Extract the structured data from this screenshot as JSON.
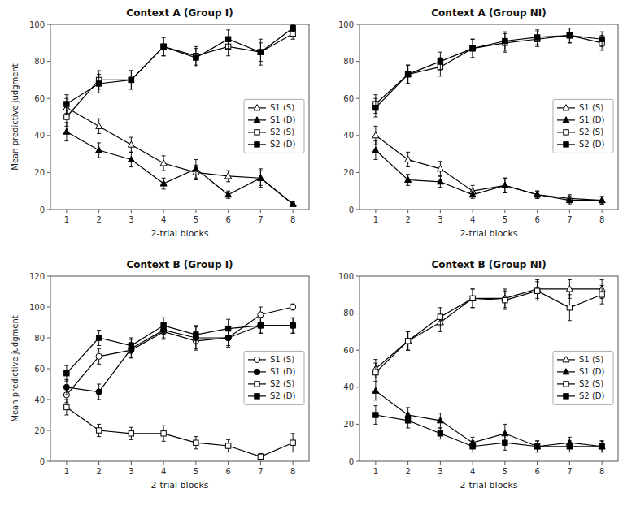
{
  "chart_data": [
    {
      "type": "line",
      "title": "Context A (Group I)",
      "x_label": "2-trial blocks",
      "y_label": "Mean predictive judgment",
      "x": [
        1,
        2,
        3,
        4,
        5,
        6,
        7,
        8
      ],
      "xlim": [
        0.5,
        8.5
      ],
      "xticks": [
        1,
        2,
        3,
        4,
        5,
        6,
        7,
        8
      ],
      "ylim": [
        0,
        100
      ],
      "yticks": [
        0,
        20,
        40,
        60,
        80,
        100
      ],
      "grid": false,
      "legend": "right",
      "series": [
        {
          "name": "S1 (S)",
          "color": "#000000",
          "marker": "triangle-open",
          "values": [
            55,
            45,
            35,
            25,
            20,
            18,
            17,
            3
          ],
          "err": [
            5,
            4,
            4,
            4,
            4,
            3,
            4,
            1
          ]
        },
        {
          "name": "S1 (D)",
          "color": "#000000",
          "marker": "triangle",
          "values": [
            42,
            32,
            27,
            14,
            22,
            8,
            17,
            3
          ],
          "err": [
            5,
            4,
            4,
            3,
            5,
            2,
            5,
            1
          ]
        },
        {
          "name": "S2 (S)",
          "color": "#000000",
          "marker": "square-open",
          "values": [
            50,
            70,
            70,
            88,
            83,
            88,
            85,
            95
          ],
          "err": [
            5,
            5,
            5,
            5,
            5,
            5,
            5,
            3
          ]
        },
        {
          "name": "S2 (D)",
          "color": "#000000",
          "marker": "square",
          "values": [
            57,
            68,
            70,
            88,
            82,
            92,
            85,
            98
          ],
          "err": [
            5,
            5,
            5,
            5,
            5,
            5,
            7,
            2
          ]
        }
      ]
    },
    {
      "type": "line",
      "title": "Context A (Group NI)",
      "x_label": "2-trial blocks",
      "x": [
        1,
        2,
        3,
        4,
        5,
        6,
        7,
        8
      ],
      "xlim": [
        0.5,
        8.5
      ],
      "xticks": [
        1,
        2,
        3,
        4,
        5,
        6,
        7,
        8
      ],
      "ylim": [
        0,
        100
      ],
      "yticks": [
        0,
        20,
        40,
        60,
        80,
        100
      ],
      "grid": false,
      "legend": "right",
      "series": [
        {
          "name": "S1 (S)",
          "color": "#000000",
          "marker": "triangle-open",
          "values": [
            40,
            27,
            22,
            10,
            13,
            8,
            6,
            5
          ],
          "err": [
            5,
            4,
            4,
            3,
            4,
            2,
            2,
            2
          ]
        },
        {
          "name": "S1 (D)",
          "color": "#000000",
          "marker": "triangle",
          "values": [
            32,
            16,
            15,
            8,
            13,
            8,
            5,
            5
          ],
          "err": [
            5,
            3,
            3,
            2,
            4,
            2,
            2,
            2
          ]
        },
        {
          "name": "S2 (S)",
          "color": "#000000",
          "marker": "square-open",
          "values": [
            57,
            73,
            77,
            87,
            90,
            92,
            94,
            90
          ],
          "err": [
            5,
            5,
            5,
            5,
            5,
            4,
            4,
            4
          ]
        },
        {
          "name": "S2 (D)",
          "color": "#000000",
          "marker": "square",
          "values": [
            55,
            73,
            80,
            87,
            91,
            93,
            94,
            92
          ],
          "err": [
            5,
            5,
            5,
            5,
            5,
            4,
            4,
            4
          ]
        }
      ]
    },
    {
      "type": "line",
      "title": "Context B (Group I)",
      "x_label": "2-trial blocks",
      "y_label": "Mean predictive judgment",
      "x": [
        1,
        2,
        3,
        4,
        5,
        6,
        7,
        8
      ],
      "xlim": [
        0.5,
        8.5
      ],
      "xticks": [
        1,
        2,
        3,
        4,
        5,
        6,
        7,
        8
      ],
      "ylim": [
        0,
        120
      ],
      "yticks": [
        0,
        20,
        40,
        60,
        80,
        100,
        120
      ],
      "grid": false,
      "legend": "right",
      "series": [
        {
          "name": "S1 (S)",
          "color": "#000000",
          "marker": "circle-open",
          "values": [
            43,
            68,
            72,
            84,
            78,
            80,
            95,
            100
          ],
          "err": [
            5,
            5,
            5,
            5,
            6,
            5,
            5,
            2
          ]
        },
        {
          "name": "S1 (D)",
          "color": "#000000",
          "marker": "circle",
          "values": [
            48,
            45,
            73,
            85,
            80,
            80,
            88,
            88
          ],
          "err": [
            5,
            5,
            6,
            5,
            7,
            6,
            5,
            5
          ]
        },
        {
          "name": "S2 (S)",
          "color": "#000000",
          "marker": "square-open",
          "values": [
            35,
            20,
            18,
            18,
            12,
            10,
            3,
            12
          ],
          "err": [
            5,
            4,
            4,
            5,
            4,
            4,
            2,
            6
          ]
        },
        {
          "name": "S2 (D)",
          "color": "#000000",
          "marker": "square",
          "values": [
            57,
            80,
            75,
            88,
            82,
            86,
            88,
            88
          ],
          "err": [
            5,
            5,
            5,
            5,
            6,
            6,
            5,
            5
          ]
        }
      ]
    },
    {
      "type": "line",
      "title": "Context B (Group NI)",
      "x_label": "2-trial blocks",
      "x": [
        1,
        2,
        3,
        4,
        5,
        6,
        7,
        8
      ],
      "xlim": [
        0.5,
        8.5
      ],
      "xticks": [
        1,
        2,
        3,
        4,
        5,
        6,
        7,
        8
      ],
      "ylim": [
        0,
        100
      ],
      "yticks": [
        0,
        20,
        40,
        60,
        80,
        100
      ],
      "grid": false,
      "legend": "right",
      "series": [
        {
          "name": "S1 (S)",
          "color": "#000000",
          "marker": "triangle-open",
          "values": [
            50,
            65,
            75,
            88,
            88,
            93,
            93,
            93
          ],
          "err": [
            5,
            5,
            5,
            5,
            5,
            5,
            5,
            5
          ]
        },
        {
          "name": "S1 (D)",
          "color": "#000000",
          "marker": "triangle",
          "values": [
            38,
            25,
            22,
            10,
            15,
            8,
            10,
            8
          ],
          "err": [
            5,
            4,
            4,
            3,
            5,
            3,
            3,
            3
          ]
        },
        {
          "name": "S2 (S)",
          "color": "#000000",
          "marker": "square-open",
          "values": [
            48,
            65,
            78,
            88,
            87,
            92,
            83,
            90
          ],
          "err": [
            5,
            5,
            5,
            5,
            5,
            5,
            7,
            5
          ]
        },
        {
          "name": "S2 (D)",
          "color": "#000000",
          "marker": "square",
          "values": [
            25,
            22,
            15,
            8,
            10,
            8,
            8,
            8
          ],
          "err": [
            5,
            4,
            3,
            3,
            4,
            3,
            3,
            3
          ]
        }
      ]
    }
  ]
}
